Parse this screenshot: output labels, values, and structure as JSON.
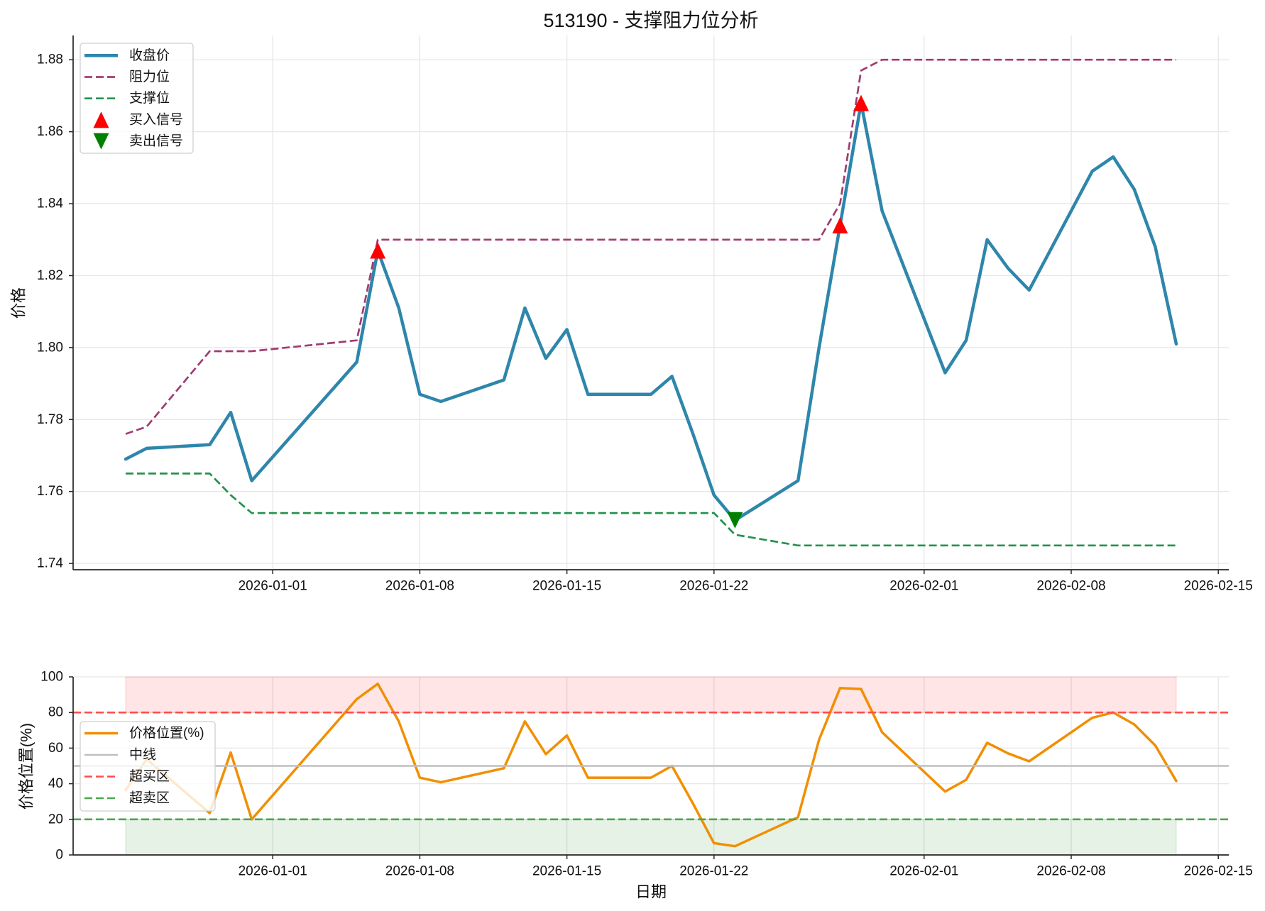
{
  "title": "513190 - 支撑阻力位分析",
  "colors": {
    "close": "#2E86AB",
    "resistance": "#A23B72",
    "support": "#23924D",
    "buy_marker": "#FF0000",
    "sell_marker": "#008000",
    "price_position": "#F18F01",
    "midline": "#BFBFBF",
    "overbought": "#FF4D4D",
    "oversold": "#4DA64D",
    "overbought_band": "#FF0000",
    "oversold_band": "#008000",
    "grid": "#E6E6E6",
    "axis": "#262626"
  },
  "panels": {
    "price": {
      "ylabel": "价格",
      "legend": [
        {
          "key": "close",
          "label": "收盘价"
        },
        {
          "key": "resistance",
          "label": "阻力位"
        },
        {
          "key": "support",
          "label": "支撑位"
        },
        {
          "key": "buy",
          "label": "买入信号"
        },
        {
          "key": "sell",
          "label": "卖出信号"
        }
      ]
    },
    "position": {
      "ylabel": "价格位置(%)",
      "xlabel": "日期",
      "legend": [
        {
          "key": "price_position",
          "label": "价格位置(%)"
        },
        {
          "key": "midline",
          "label": "中线"
        },
        {
          "key": "overbought",
          "label": "超买区"
        },
        {
          "key": "oversold",
          "label": "超卖区"
        }
      ]
    }
  },
  "chart_data": [
    {
      "id": "price",
      "type": "line",
      "title": "513190 - 支撑阻力位分析",
      "xlabel": "",
      "ylabel": "价格",
      "x": [
        "2025-12-25",
        "2025-12-26",
        "2025-12-29",
        "2025-12-30",
        "2025-12-31",
        "2026-01-05",
        "2026-01-06",
        "2026-01-07",
        "2026-01-08",
        "2026-01-09",
        "2026-01-12",
        "2026-01-13",
        "2026-01-14",
        "2026-01-15",
        "2026-01-16",
        "2026-01-19",
        "2026-01-20",
        "2026-01-21",
        "2026-01-22",
        "2026-01-23",
        "2026-01-26",
        "2026-01-27",
        "2026-01-28",
        "2026-01-29",
        "2026-01-30",
        "2026-02-02",
        "2026-02-03",
        "2026-02-04",
        "2026-02-05",
        "2026-02-06",
        "2026-02-09",
        "2026-02-10",
        "2026-02-11",
        "2026-02-12",
        "2026-02-13"
      ],
      "series": [
        {
          "name": "收盘价",
          "key": "close",
          "style": "solid",
          "values": [
            1.769,
            1.772,
            1.773,
            1.782,
            1.763,
            1.796,
            1.827,
            1.811,
            1.787,
            1.785,
            1.791,
            1.811,
            1.797,
            1.805,
            1.787,
            1.787,
            1.792,
            1.776,
            1.759,
            1.752,
            1.763,
            1.8,
            1.834,
            1.868,
            1.838,
            1.793,
            1.802,
            1.83,
            1.822,
            1.816,
            1.849,
            1.853,
            1.844,
            1.828,
            1.801
          ]
        },
        {
          "name": "阻力位",
          "key": "resistance",
          "style": "dashed",
          "values": [
            1.776,
            1.778,
            1.799,
            1.799,
            1.799,
            1.802,
            1.83,
            1.83,
            1.83,
            1.83,
            1.83,
            1.83,
            1.83,
            1.83,
            1.83,
            1.83,
            1.83,
            1.83,
            1.83,
            1.83,
            1.83,
            1.83,
            1.84,
            1.877,
            1.88,
            1.88,
            1.88,
            1.88,
            1.88,
            1.88,
            1.88,
            1.88,
            1.88,
            1.88,
            1.88
          ]
        },
        {
          "name": "支撑位",
          "key": "support",
          "style": "dashed",
          "values": [
            1.765,
            1.765,
            1.765,
            1.759,
            1.754,
            1.754,
            1.754,
            1.754,
            1.754,
            1.754,
            1.754,
            1.754,
            1.754,
            1.754,
            1.754,
            1.754,
            1.754,
            1.754,
            1.754,
            1.748,
            1.745,
            1.745,
            1.745,
            1.745,
            1.745,
            1.745,
            1.745,
            1.745,
            1.745,
            1.745,
            1.745,
            1.745,
            1.745,
            1.745,
            1.745
          ]
        }
      ],
      "markers": [
        {
          "name": "买入信号",
          "key": "buy",
          "shape": "triangle-up",
          "x": [
            "2026-01-06",
            "2026-01-28",
            "2026-01-29"
          ],
          "y": [
            1.827,
            1.834,
            1.868
          ]
        },
        {
          "name": "卖出信号",
          "key": "sell",
          "shape": "triangle-down",
          "x": [
            "2026-01-23"
          ],
          "y": [
            1.752
          ]
        }
      ],
      "ylim": [
        1.73825,
        1.88675
      ],
      "yticks": [
        1.74,
        1.76,
        1.78,
        1.8,
        1.82,
        1.84,
        1.86,
        1.88
      ],
      "ytick_labels": [
        "1.74",
        "1.76",
        "1.78",
        "1.80",
        "1.82",
        "1.84",
        "1.86",
        "1.88"
      ],
      "xticks": [
        "2026-01-01",
        "2026-01-08",
        "2026-01-15",
        "2026-01-22",
        "2026-02-01",
        "2026-02-08",
        "2026-02-15"
      ],
      "grid": true,
      "legend_position": "upper left"
    },
    {
      "id": "position",
      "type": "line",
      "title": "",
      "xlabel": "日期",
      "ylabel": "价格位置(%)",
      "x": [
        "2025-12-25",
        "2025-12-26",
        "2025-12-29",
        "2025-12-30",
        "2025-12-31",
        "2026-01-05",
        "2026-01-06",
        "2026-01-07",
        "2026-01-08",
        "2026-01-09",
        "2026-01-12",
        "2026-01-13",
        "2026-01-14",
        "2026-01-15",
        "2026-01-16",
        "2026-01-19",
        "2026-01-20",
        "2026-01-21",
        "2026-01-22",
        "2026-01-23",
        "2026-01-26",
        "2026-01-27",
        "2026-01-28",
        "2026-01-29",
        "2026-01-30",
        "2026-02-02",
        "2026-02-03",
        "2026-02-04",
        "2026-02-05",
        "2026-02-06",
        "2026-02-09",
        "2026-02-10",
        "2026-02-11",
        "2026-02-12",
        "2026-02-13"
      ],
      "series": [
        {
          "name": "价格位置(%)",
          "key": "price_position",
          "style": "solid",
          "values": [
            36.4,
            53.8,
            23.5,
            57.5,
            20.0,
            87.5,
            96.1,
            75.0,
            43.4,
            40.8,
            48.7,
            75.0,
            56.6,
            67.1,
            43.4,
            43.4,
            50.0,
            28.9,
            6.6,
            4.9,
            21.2,
            64.7,
            93.7,
            93.2,
            68.9,
            35.6,
            42.2,
            63.0,
            57.0,
            52.6,
            77.0,
            80.0,
            73.3,
            61.5,
            41.5
          ]
        }
      ],
      "hlines": [
        {
          "name": "中线",
          "key": "midline",
          "y": 50,
          "style": "solid"
        },
        {
          "name": "超买区",
          "key": "overbought",
          "y": 80,
          "style": "dashed"
        },
        {
          "name": "超卖区",
          "key": "oversold",
          "y": 20,
          "style": "dashed"
        }
      ],
      "bands": [
        {
          "key": "overbought_band",
          "y0": 80,
          "y1": 100
        },
        {
          "key": "oversold_band",
          "y0": 0,
          "y1": 20
        }
      ],
      "ylim": [
        0,
        100
      ],
      "yticks": [
        0,
        20,
        40,
        60,
        80,
        100
      ],
      "ytick_labels": [
        "0",
        "20",
        "40",
        "60",
        "80",
        "100"
      ],
      "xticks": [
        "2026-01-01",
        "2026-01-08",
        "2026-01-15",
        "2026-01-22",
        "2026-02-01",
        "2026-02-08",
        "2026-02-15"
      ],
      "grid": true,
      "legend_position": "center left"
    }
  ]
}
